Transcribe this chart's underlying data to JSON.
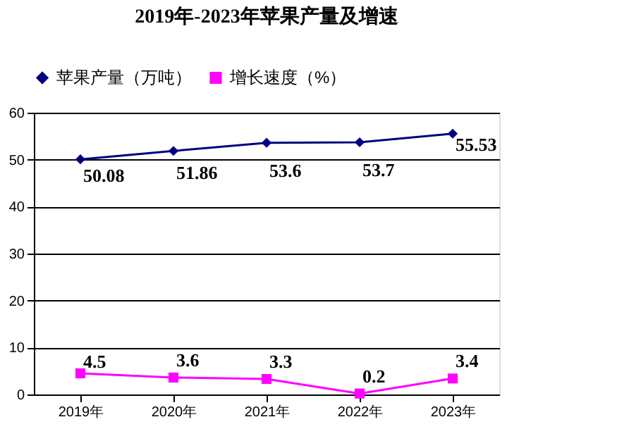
{
  "chart_data": {
    "type": "line",
    "title": "2019年-2023年苹果产量及增速",
    "categories": [
      "2019年",
      "2020年",
      "2021年",
      "2022年",
      "2023年"
    ],
    "series": [
      {
        "name": "苹果产量（万吨）",
        "color": "#000080",
        "marker": "diamond",
        "values": [
          50.08,
          51.86,
          53.6,
          53.7,
          55.53
        ]
      },
      {
        "name": "增长速度（%）",
        "color": "#ff00ff",
        "marker": "square",
        "values": [
          4.5,
          3.6,
          3.3,
          0.2,
          3.4
        ]
      }
    ],
    "ylim": [
      0,
      60
    ],
    "yticks": [
      0,
      10,
      20,
      30,
      40,
      50,
      60
    ],
    "grid": "y",
    "legend": "top",
    "data_labels": true
  }
}
